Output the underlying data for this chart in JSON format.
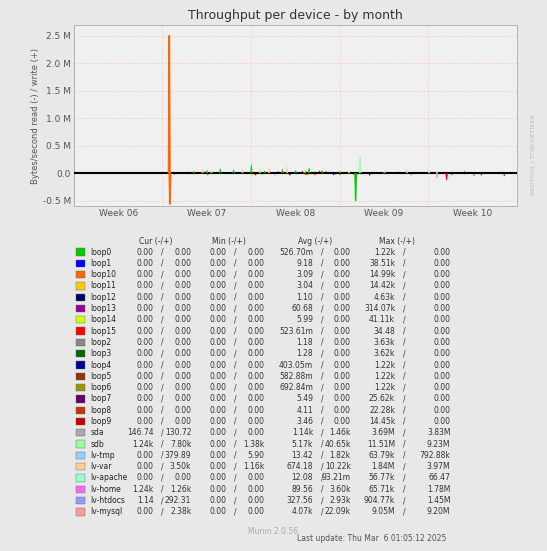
{
  "title": "Throughput per device - by month",
  "ylabel": "Bytes/second read (-) / write (+)",
  "watermark": "RRDTOOL / TOBI OETIKER",
  "munin_version": "Munin 2.0.56",
  "last_update": "Last update: Thu Mar  6 01:05:12 2025",
  "x_ticks": [
    "Week 06",
    "Week 07",
    "Week 08",
    "Week 09",
    "Week 10"
  ],
  "x_tick_pos": [
    0.1,
    0.3,
    0.5,
    0.7,
    0.9
  ],
  "ylim": [
    -600000,
    2700000
  ],
  "yticks": [
    -500000,
    0,
    500000,
    1000000,
    1500000,
    2000000,
    2500000
  ],
  "ytick_labels": [
    "-0.5 M",
    "0.0",
    "0.5 M",
    "1.0 M",
    "1.5 M",
    "2.0 M",
    "2.5 M"
  ],
  "bg_color": "#e8e8e8",
  "plot_bg_color": "#f0f0f0",
  "grid_color_major": "#d0d0d0",
  "grid_color_dotted": "#cccccc",
  "border_color": "#aaaaaa",
  "zero_line_color": "#000000",
  "title_color": "#333333",
  "font_color": "#555555",
  "legend_entries": [
    {
      "label": "loop0",
      "color": "#00cc00"
    },
    {
      "label": "loop1",
      "color": "#0000ff"
    },
    {
      "label": "loop10",
      "color": "#ff6600"
    },
    {
      "label": "loop11",
      "color": "#ffcc00"
    },
    {
      "label": "loop12",
      "color": "#000066"
    },
    {
      "label": "loop13",
      "color": "#990099"
    },
    {
      "label": "loop14",
      "color": "#ccff00"
    },
    {
      "label": "loop15",
      "color": "#ff0000"
    },
    {
      "label": "loop2",
      "color": "#888888"
    },
    {
      "label": "loop3",
      "color": "#006600"
    },
    {
      "label": "loop4",
      "color": "#000099"
    },
    {
      "label": "loop5",
      "color": "#993300"
    },
    {
      "label": "loop6",
      "color": "#999900"
    },
    {
      "label": "loop7",
      "color": "#660066"
    },
    {
      "label": "loop8",
      "color": "#cc3300"
    },
    {
      "label": "loop9",
      "color": "#cc0000"
    },
    {
      "label": "sda",
      "color": "#aaaaaa"
    },
    {
      "label": "sdb",
      "color": "#99ff99"
    },
    {
      "label": "lv-tmp",
      "color": "#99ccff"
    },
    {
      "label": "lv-var",
      "color": "#ffcc99"
    },
    {
      "label": "lv-apache",
      "color": "#99ffcc"
    },
    {
      "label": "lv-home",
      "color": "#ff66ff"
    },
    {
      "label": "lv-htdocs",
      "color": "#9999ff"
    },
    {
      "label": "lv-mysql",
      "color": "#ff9999"
    }
  ],
  "legend_table": [
    [
      "loop0",
      "0.00",
      "0.00",
      "0.00",
      "0.00",
      "526.70m",
      "0.00",
      "1.22k",
      "0.00"
    ],
    [
      "loop1",
      "0.00",
      "0.00",
      "0.00",
      "0.00",
      "9.18",
      "0.00",
      "38.51k",
      "0.00"
    ],
    [
      "loop10",
      "0.00",
      "0.00",
      "0.00",
      "0.00",
      "3.09",
      "0.00",
      "14.99k",
      "0.00"
    ],
    [
      "loop11",
      "0.00",
      "0.00",
      "0.00",
      "0.00",
      "3.04",
      "0.00",
      "14.42k",
      "0.00"
    ],
    [
      "loop12",
      "0.00",
      "0.00",
      "0.00",
      "0.00",
      "1.10",
      "0.00",
      "4.63k",
      "0.00"
    ],
    [
      "loop13",
      "0.00",
      "0.00",
      "0.00",
      "0.00",
      "60.68",
      "0.00",
      "314.07k",
      "0.00"
    ],
    [
      "loop14",
      "0.00",
      "0.00",
      "0.00",
      "0.00",
      "5.99",
      "0.00",
      "41.11k",
      "0.00"
    ],
    [
      "loop15",
      "0.00",
      "0.00",
      "0.00",
      "0.00",
      "523.61m",
      "0.00",
      "34.48",
      "0.00"
    ],
    [
      "loop2",
      "0.00",
      "0.00",
      "0.00",
      "0.00",
      "1.18",
      "0.00",
      "3.63k",
      "0.00"
    ],
    [
      "loop3",
      "0.00",
      "0.00",
      "0.00",
      "0.00",
      "1.28",
      "0.00",
      "3.62k",
      "0.00"
    ],
    [
      "loop4",
      "0.00",
      "0.00",
      "0.00",
      "0.00",
      "403.05m",
      "0.00",
      "1.22k",
      "0.00"
    ],
    [
      "loop5",
      "0.00",
      "0.00",
      "0.00",
      "0.00",
      "582.88m",
      "0.00",
      "1.22k",
      "0.00"
    ],
    [
      "loop6",
      "0.00",
      "0.00",
      "0.00",
      "0.00",
      "692.84m",
      "0.00",
      "1.22k",
      "0.00"
    ],
    [
      "loop7",
      "0.00",
      "0.00",
      "0.00",
      "0.00",
      "5.49",
      "0.00",
      "25.62k",
      "0.00"
    ],
    [
      "loop8",
      "0.00",
      "0.00",
      "0.00",
      "0.00",
      "4.11",
      "0.00",
      "22.28k",
      "0.00"
    ],
    [
      "loop9",
      "0.00",
      "0.00",
      "0.00",
      "0.00",
      "3.46",
      "0.00",
      "14.45k",
      "0.00"
    ],
    [
      "sda",
      "146.74",
      "130.72",
      "0.00",
      "0.00",
      "1.14k",
      "1.46k",
      "3.69M",
      "3.83M"
    ],
    [
      "sdb",
      "1.24k",
      "7.80k",
      "0.00",
      "1.38k",
      "5.17k",
      "40.65k",
      "11.51M",
      "9.23M"
    ],
    [
      "lv-tmp",
      "0.00",
      "379.89",
      "0.00",
      "5.90",
      "13.42",
      "1.82k",
      "63.79k",
      "792.88k"
    ],
    [
      "lv-var",
      "0.00",
      "3.50k",
      "0.00",
      "1.16k",
      "674.18",
      "10.22k",
      "1.84M",
      "3.97M"
    ],
    [
      "lv-apache",
      "0.00",
      "0.00",
      "0.00",
      "0.00",
      "12.08",
      "93.21m",
      "56.77k",
      "66.47"
    ],
    [
      "lv-home",
      "1.24k",
      "1.26k",
      "0.00",
      "0.00",
      "89.56",
      "3.60k",
      "65.71k",
      "1.78M"
    ],
    [
      "lv-htdocs",
      "1.14",
      "292.31",
      "0.00",
      "0.00",
      "327.56",
      "2.93k",
      "904.77k",
      "1.45M"
    ],
    [
      "lv-mysql",
      "0.00",
      "2.38k",
      "0.00",
      "0.00",
      "4.07k",
      "22.09k",
      "9.05M",
      "9.20M"
    ]
  ]
}
